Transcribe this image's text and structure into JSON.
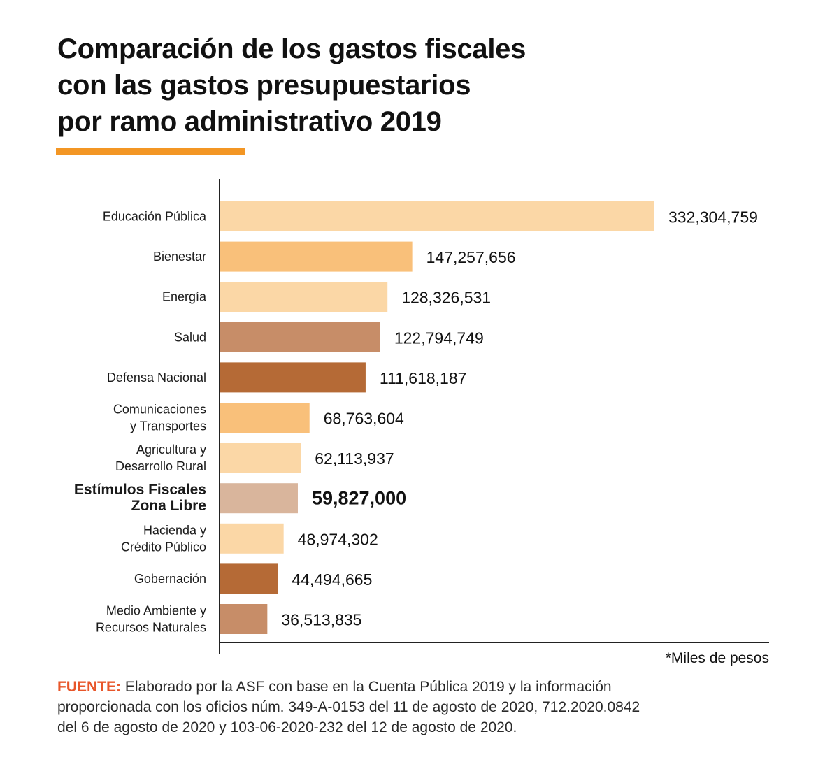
{
  "title_lines": [
    "Comparación de los gastos fiscales",
    "con las gastos presupuestarios",
    "por ramo administrativo 2019"
  ],
  "unit_note": "*Miles de pesos",
  "source": {
    "label": "FUENTE:",
    "lines": [
      "Elaborado por la ASF con base en la Cuenta Pública 2019 y la información",
      "proporcionada con los oficios núm. 349-A-0153 del 11 de agosto de 2020, 712.2020.0842",
      "del 6 de agosto de 2020 y 103-06-2020-232  del 12 de agosto de 2020."
    ]
  },
  "colors": {
    "accent": "#f39624",
    "source_label": "#e8562a",
    "axis": "#222222",
    "highlight_text": "#d8b49a"
  },
  "chart_data": {
    "type": "bar",
    "orientation": "horizontal",
    "categories": [
      [
        "Educación Pública"
      ],
      [
        "Bienestar"
      ],
      [
        "Energía"
      ],
      [
        "Salud"
      ],
      [
        "Defensa Nacional"
      ],
      [
        "Comunicaciones",
        "y Transportes"
      ],
      [
        "Agricultura y",
        "Desarrollo Rural"
      ],
      [
        "Estímulos Fiscales",
        "Zona Libre"
      ],
      [
        "Hacienda y",
        "Crédito Público"
      ],
      [
        "Gobernación"
      ],
      [
        "Medio Ambiente y",
        "Recursos Naturales"
      ]
    ],
    "values": [
      332304759,
      147257656,
      128326531,
      122794749,
      111618187,
      68763604,
      62113937,
      59827000,
      48974302,
      44494665,
      36513835
    ],
    "value_labels": [
      "332,304,759",
      "147,257,656",
      "128,326,531",
      "122,794,749",
      "111,618,187",
      "68,763,604",
      "62,113,937",
      "59,827,000",
      "48,974,302",
      "44,494,665",
      "36,513,835"
    ],
    "bar_colors": [
      "#fbd7a6",
      "#f9c07a",
      "#fbd7a6",
      "#c78d68",
      "#b56a36",
      "#f9c07a",
      "#fbd7a6",
      "#d9b59c",
      "#fbd7a6",
      "#b56a36",
      "#c78d68"
    ],
    "highlight_index": 7,
    "xlim": [
      0,
      332304759
    ],
    "grid": false,
    "legend": "none"
  }
}
